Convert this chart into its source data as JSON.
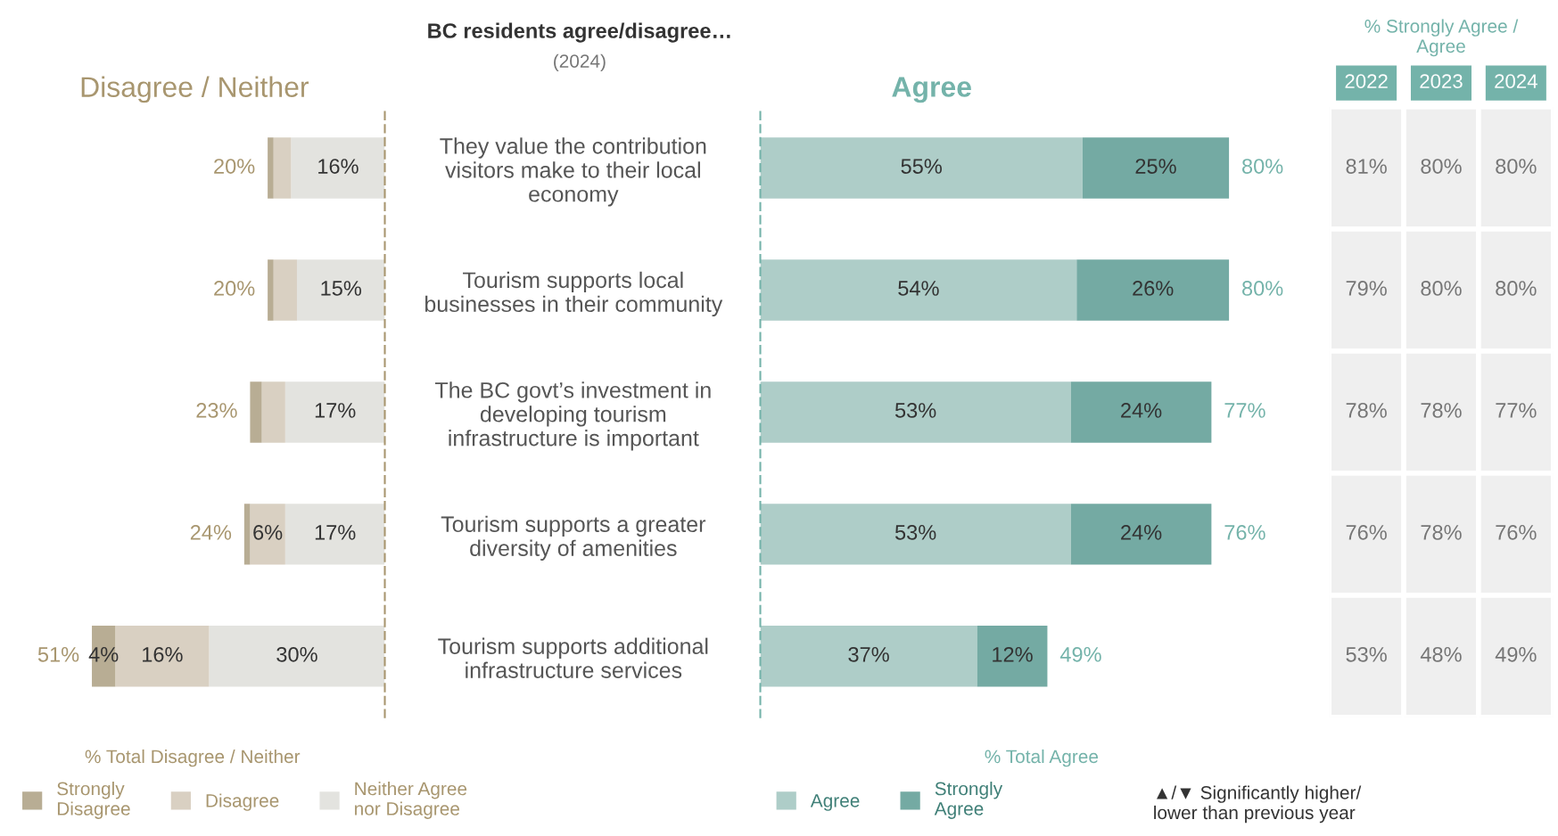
{
  "chart_data": [
    {
      "type": "bar",
      "orientation": "horizontal",
      "stacked": true,
      "annotations": [
        "BC residents agree/disagree…",
        "(2024)",
        "Disagree / Neither"
      ],
      "xlabel": "% Total Disagree / Neither",
      "series": [
        {
          "name": "Neither Agree\nnor Disagree",
          "color": "#e3e3df",
          "values": [
            16,
            15,
            17,
            17,
            30
          ],
          "value_labels": [
            "16%",
            "15%",
            "17%",
            "17%",
            "30%"
          ]
        },
        {
          "name": "Disagree",
          "color": "#d9d0c2",
          "values": [
            3,
            4,
            4,
            6,
            16
          ],
          "value_labels": [
            null,
            null,
            null,
            "6%",
            "16%"
          ]
        },
        {
          "name": "Strongly\nDisagree",
          "color": "#b8ad94",
          "values": [
            1,
            1,
            2,
            1,
            4
          ],
          "value_labels": [
            null,
            null,
            null,
            null,
            "4%"
          ]
        }
      ],
      "totals": [
        "20%",
        "20%",
        "23%",
        "24%",
        "51%"
      ],
      "tick_labels": false,
      "legend": "bottom"
    },
    {
      "type": "bar",
      "orientation": "horizontal",
      "stacked": true,
      "title": "Agree",
      "xlabel": "% Total Agree",
      "categories": [
        "They value the contribution\nvisitors make to their local\neconomy",
        "Tourism supports local\nbusinesses in their community",
        "The BC govt’s investment in\ndeveloping tourism\ninfrastructure is important",
        "Tourism supports a greater\ndiversity of amenities",
        "Tourism supports additional\ninfrastructure services"
      ],
      "series": [
        {
          "name": "Agree",
          "color": "#aecdc8",
          "values": [
            55,
            54,
            53,
            53,
            37
          ],
          "value_labels": [
            "55%",
            "54%",
            "53%",
            "53%",
            "37%"
          ]
        },
        {
          "name": "Strongly\nAgree",
          "color": "#74aaa3",
          "values": [
            25,
            26,
            24,
            24,
            12
          ],
          "value_labels": [
            "25%",
            "26%",
            "24%",
            "24%",
            "12%"
          ]
        }
      ],
      "totals": [
        "80%",
        "80%",
        "77%",
        "76%",
        "49%"
      ],
      "tick_labels": "y",
      "legend": "bottom"
    },
    {
      "type": "other",
      "title": "% Strongly Agree /\nAgree",
      "categories": [
        "2022",
        "2023",
        "2024"
      ],
      "cell_labels": [
        [
          "81%",
          "80%",
          "80%"
        ],
        [
          "79%",
          "80%",
          "80%"
        ],
        [
          "78%",
          "78%",
          "77%"
        ],
        [
          "76%",
          "78%",
          "76%"
        ],
        [
          "53%",
          "48%",
          "49%"
        ]
      ],
      "color": "#efefef",
      "annotations": [
        "▲/▼ Significantly higher/\nlower than previous year"
      ]
    }
  ]
}
